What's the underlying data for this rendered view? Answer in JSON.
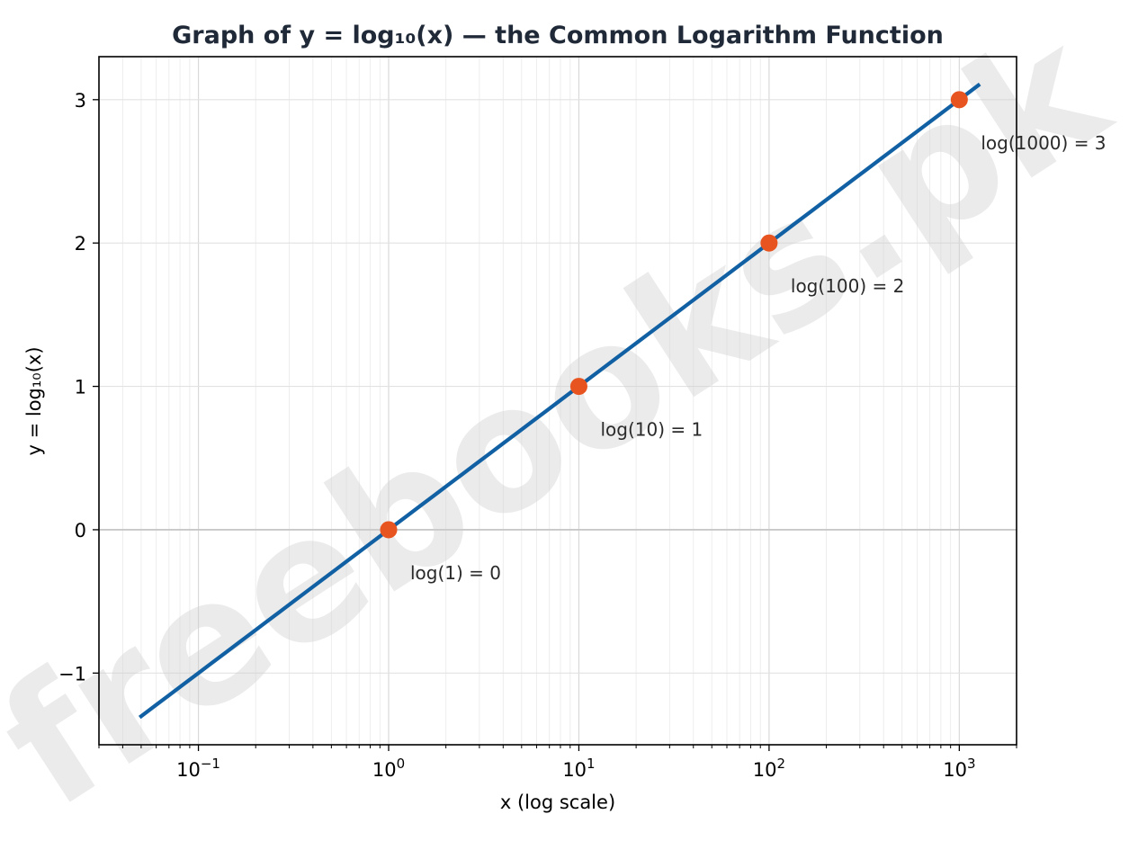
{
  "chart_data": {
    "type": "line",
    "title": "Graph of y = log₁₀(x) — the Common Logarithm Function",
    "xlabel": "x (log scale)",
    "ylabel": "y = log₁₀(x)",
    "x_scale": "log",
    "xlim": [
      0.03,
      2000
    ],
    "ylim": [
      -1.5,
      3.3
    ],
    "x_ticks": [
      {
        "value": 0.1,
        "base": "10",
        "exp": "−1"
      },
      {
        "value": 1,
        "base": "10",
        "exp": "0"
      },
      {
        "value": 10,
        "base": "10",
        "exp": "1"
      },
      {
        "value": 100,
        "base": "10",
        "exp": "2"
      },
      {
        "value": 1000,
        "base": "10",
        "exp": "3"
      }
    ],
    "y_ticks": [
      {
        "value": -1,
        "label": "−1"
      },
      {
        "value": 0,
        "label": "0"
      },
      {
        "value": 1,
        "label": "1"
      },
      {
        "value": 2,
        "label": "2"
      },
      {
        "value": 3,
        "label": "3"
      }
    ],
    "grid": true,
    "series": [
      {
        "function": "log10",
        "x_range": [
          0.05,
          1259
        ],
        "color": "#1060a3"
      }
    ],
    "points": [
      {
        "x": 1,
        "y": 0,
        "label": "log(1) = 0"
      },
      {
        "x": 10,
        "y": 1,
        "label": "log(10) = 1"
      },
      {
        "x": 100,
        "y": 2,
        "label": "log(100) = 2"
      },
      {
        "x": 1000,
        "y": 3,
        "label": "log(1000) = 3"
      }
    ],
    "point_color": "#e8541f",
    "watermark": "freebooks.pk"
  }
}
